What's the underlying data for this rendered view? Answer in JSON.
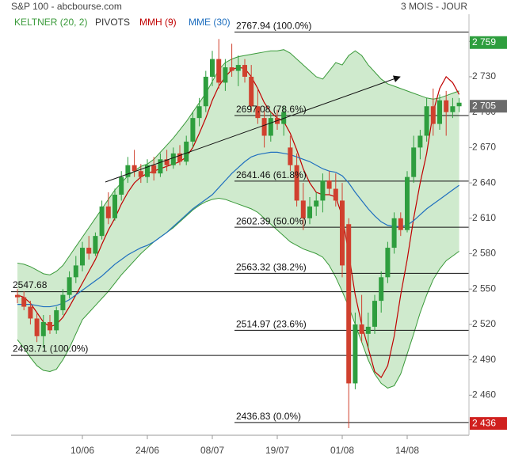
{
  "chart_data": {
    "type": "candlestick",
    "title": "S&P 100 - abcbourse.com",
    "subtitle": "3 MOIS - JOUR",
    "categories": [
      null,
      null,
      null,
      null,
      null,
      null,
      null,
      null,
      null,
      null,
      "10/06",
      null,
      null,
      null,
      null,
      null,
      null,
      null,
      null,
      null,
      "24/06",
      null,
      null,
      null,
      null,
      null,
      null,
      null,
      null,
      null,
      "08/07",
      null,
      null,
      null,
      null,
      null,
      null,
      null,
      null,
      null,
      "19/07",
      null,
      null,
      null,
      null,
      null,
      null,
      null,
      null,
      null,
      "01/08",
      null,
      null,
      null,
      null,
      null,
      null,
      null,
      null,
      null,
      "14/08",
      null,
      null,
      null,
      null,
      null,
      null,
      null,
      null
    ],
    "open": [
      2545,
      2543,
      2535,
      2525,
      2510,
      2522,
      2515,
      2532,
      2545,
      2560,
      2570,
      2585,
      2580,
      2595,
      2620,
      2610,
      2630,
      2645,
      2655,
      2650,
      2645,
      2655,
      2648,
      2660,
      2655,
      2665,
      2658,
      2675,
      2695,
      2705,
      2730,
      2745,
      2725,
      2738,
      2735,
      2740,
      2730,
      2705,
      2695,
      2680,
      2695,
      2690,
      2670,
      2655,
      2625,
      2610,
      2620,
      2625,
      2642,
      2635,
      2625,
      2605,
      2470,
      2520,
      2512,
      2518,
      2540,
      2560,
      2585,
      2610,
      2600,
      2645,
      2670,
      2680,
      2705,
      2690,
      2710,
      2700,
      2705
    ],
    "high": [
      2550,
      2548,
      2540,
      2530,
      2528,
      2528,
      2535,
      2550,
      2565,
      2578,
      2590,
      2595,
      2598,
      2625,
      2632,
      2635,
      2650,
      2662,
      2668,
      2656,
      2660,
      2662,
      2665,
      2668,
      2670,
      2672,
      2680,
      2700,
      2712,
      2735,
      2752,
      2762,
      2745,
      2758,
      2748,
      2745,
      2740,
      2720,
      2705,
      2700,
      2702,
      2705,
      2680,
      2665,
      2640,
      2628,
      2632,
      2648,
      2650,
      2648,
      2640,
      2610,
      2530,
      2545,
      2530,
      2545,
      2565,
      2590,
      2615,
      2615,
      2650,
      2680,
      2685,
      2712,
      2720,
      2715,
      2718,
      2712,
      2712
    ],
    "low": [
      2538,
      2532,
      2520,
      2505,
      2500,
      2512,
      2512,
      2528,
      2542,
      2555,
      2565,
      2575,
      2578,
      2592,
      2605,
      2608,
      2625,
      2640,
      2645,
      2640,
      2640,
      2642,
      2645,
      2650,
      2652,
      2655,
      2655,
      2670,
      2688,
      2700,
      2722,
      2720,
      2718,
      2730,
      2722,
      2725,
      2700,
      2690,
      2670,
      2675,
      2685,
      2680,
      2650,
      2620,
      2600,
      2605,
      2612,
      2615,
      2630,
      2620,
      2560,
      2432,
      2465,
      2505,
      2500,
      2512,
      2530,
      2555,
      2580,
      2595,
      2598,
      2640,
      2660,
      2675,
      2680,
      2685,
      2680,
      2695,
      2700
    ],
    "close": [
      2543,
      2535,
      2525,
      2510,
      2522,
      2515,
      2532,
      2545,
      2560,
      2570,
      2585,
      2580,
      2595,
      2620,
      2610,
      2630,
      2645,
      2655,
      2650,
      2645,
      2655,
      2648,
      2660,
      2655,
      2665,
      2658,
      2675,
      2695,
      2705,
      2730,
      2745,
      2725,
      2738,
      2735,
      2740,
      2730,
      2705,
      2695,
      2680,
      2695,
      2690,
      2700,
      2655,
      2625,
      2610,
      2620,
      2625,
      2642,
      2635,
      2625,
      2570,
      2470,
      2520,
      2512,
      2518,
      2540,
      2560,
      2585,
      2610,
      2600,
      2645,
      2670,
      2680,
      2705,
      2690,
      2710,
      2700,
      2705,
      2708
    ],
    "up_color": "#2e9e3e",
    "down_color": "#d0402e",
    "keltner": {
      "name": "KELTNER (20, 2)",
      "color": "#3a9a3a",
      "fill": "#c7e6c4",
      "upper": [
        2572,
        2571,
        2569,
        2566,
        2563,
        2562,
        2565,
        2570,
        2578,
        2586,
        2594,
        2602,
        2610,
        2618,
        2626,
        2634,
        2640,
        2646,
        2650,
        2654,
        2656,
        2660,
        2666,
        2672,
        2678,
        2685,
        2692,
        2700,
        2708,
        2716,
        2726,
        2736,
        2742,
        2745,
        2747,
        2748,
        2749,
        2750,
        2751,
        2752,
        2752,
        2753,
        2750,
        2745,
        2740,
        2735,
        2730,
        2728,
        2735,
        2742,
        2740,
        2748,
        2752,
        2748,
        2740,
        2734,
        2728,
        2724,
        2722,
        2720,
        2718,
        2716,
        2714,
        2712,
        2711,
        2712,
        2714,
        2716,
        2718
      ],
      "lower": [
        2507,
        2500,
        2492,
        2485,
        2481,
        2480,
        2482,
        2490,
        2500,
        2512,
        2524,
        2530,
        2536,
        2542,
        2548,
        2555,
        2562,
        2568,
        2574,
        2580,
        2585,
        2590,
        2594,
        2598,
        2602,
        2607,
        2612,
        2617,
        2621,
        2624,
        2626,
        2627,
        2626,
        2624,
        2622,
        2620,
        2618,
        2615,
        2610,
        2605,
        2600,
        2595,
        2590,
        2587,
        2584,
        2582,
        2580,
        2577,
        2570,
        2560,
        2548,
        2535,
        2520,
        2505,
        2490,
        2478,
        2470,
        2466,
        2468,
        2478,
        2495,
        2512,
        2530,
        2545,
        2558,
        2567,
        2574,
        2578,
        2582
      ]
    },
    "pivots": {
      "name": "PIVOTS",
      "color": "#333333"
    },
    "lines": [
      {
        "name": "MMH (9)",
        "color": "#c00000",
        "values": [
          2545,
          2543,
          2538,
          2530,
          2522,
          2518,
          2520,
          2526,
          2535,
          2545,
          2555,
          2565,
          2575,
          2588,
          2600,
          2610,
          2622,
          2632,
          2640,
          2645,
          2648,
          2650,
          2652,
          2654,
          2656,
          2658,
          2662,
          2670,
          2682,
          2695,
          2710,
          2722,
          2730,
          2736,
          2738,
          2737,
          2730,
          2720,
          2708,
          2700,
          2695,
          2692,
          2682,
          2668,
          2652,
          2640,
          2632,
          2630,
          2630,
          2628,
          2612,
          2580,
          2545,
          2520,
          2500,
          2480,
          2475,
          2485,
          2510,
          2545,
          2575,
          2610,
          2640,
          2665,
          2700,
          2720,
          2730,
          2725,
          2715
        ]
      },
      {
        "name": "MME (30)",
        "color": "#1f6fbf",
        "values": [
          2537,
          2537,
          2537,
          2536,
          2535,
          2535,
          2536,
          2538,
          2541,
          2545,
          2549,
          2553,
          2557,
          2561,
          2566,
          2571,
          2575,
          2579,
          2582,
          2585,
          2587,
          2590,
          2594,
          2598,
          2603,
          2608,
          2613,
          2618,
          2622,
          2626,
          2630,
          2636,
          2642,
          2648,
          2653,
          2658,
          2662,
          2664,
          2665,
          2666,
          2666,
          2665,
          2664,
          2662,
          2660,
          2658,
          2655,
          2652,
          2650,
          2649,
          2646,
          2640,
          2632,
          2625,
          2618,
          2612,
          2607,
          2604,
          2603,
          2603,
          2604,
          2608,
          2613,
          2618,
          2622,
          2626,
          2630,
          2634,
          2638
        ]
      }
    ],
    "fib_levels": [
      {
        "value": 2767.94,
        "label": "2767.94  (100.0%)"
      },
      {
        "value": 2697.08,
        "label": "2697.08  (78.6%)"
      },
      {
        "value": 2641.46,
        "label": "2641.46  (61.8%)"
      },
      {
        "value": 2602.39,
        "label": "2602.39  (50.0%)"
      },
      {
        "value": 2563.32,
        "label": "2563.32  (38.2%)"
      },
      {
        "value": 2514.97,
        "label": "2514.97  (23.6%)"
      },
      {
        "value": 2436.83,
        "label": "2436.83  (0.0%)"
      }
    ],
    "hlines": [
      {
        "value": 2547.68,
        "label": "2547.68"
      },
      {
        "value": 2493.71,
        "label": "2493.71  (100.0%)"
      }
    ],
    "price_tags": [
      {
        "value": 2759,
        "label": "2 759",
        "color": "#2e9e3e"
      },
      {
        "value": 2705,
        "label": "2 705",
        "color": "#6b6b6b"
      },
      {
        "value": 2436,
        "label": "2 436",
        "color": "#d0201e"
      }
    ],
    "ylim": [
      2426,
      2783
    ],
    "yticks": [
      {
        "value": 2460,
        "label": "2 460"
      },
      {
        "value": 2490,
        "label": "2 490"
      },
      {
        "value": 2520,
        "label": "2 520"
      },
      {
        "value": 2550,
        "label": "2 550"
      },
      {
        "value": 2580,
        "label": "2 580"
      },
      {
        "value": 2610,
        "label": "2 610"
      },
      {
        "value": 2640,
        "label": "2 640"
      },
      {
        "value": 2670,
        "label": "2 670"
      },
      {
        "value": 2700,
        "label": "2 700"
      },
      {
        "value": 2730,
        "label": "2 730"
      },
      {
        "value": 2760,
        "label": "2 760"
      }
    ]
  }
}
